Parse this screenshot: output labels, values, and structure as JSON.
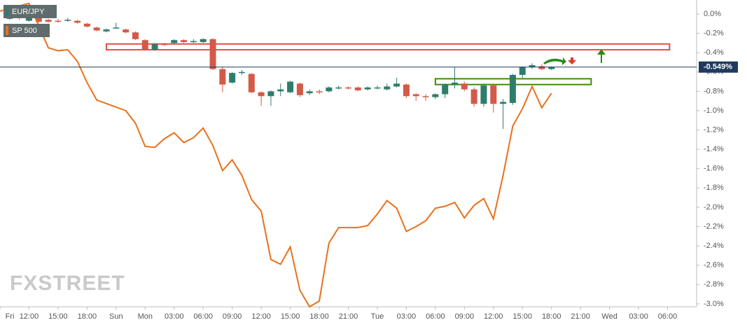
{
  "chart_data": {
    "type": "candlestick",
    "series": [
      {
        "name": "EUR/JPY",
        "type": "candlestick",
        "up_color": "#2e7d6b",
        "down_color": "#d35a48",
        "x": [
          1,
          2,
          3,
          4,
          5,
          6,
          7,
          8,
          9,
          10,
          11,
          12,
          13,
          14,
          15,
          16,
          17,
          18,
          19,
          20,
          21,
          22,
          23,
          24,
          25,
          26,
          27,
          28,
          29,
          30,
          31,
          32,
          33,
          34,
          35,
          36,
          37,
          38,
          39,
          40,
          41,
          42,
          43,
          44,
          45,
          46,
          47,
          48,
          49,
          50,
          51,
          52,
          53,
          54,
          55,
          56,
          57
        ],
        "open": [
          -0.05,
          -0.03,
          -0.07,
          -0.03,
          -0.06,
          -0.07,
          -0.06,
          -0.07,
          -0.1,
          -0.14,
          -0.18,
          -0.14,
          -0.16,
          -0.19,
          -0.27,
          -0.37,
          -0.31,
          -0.3,
          -0.27,
          -0.28,
          -0.29,
          -0.26,
          -0.57,
          -0.71,
          -0.6,
          -0.62,
          -0.81,
          -0.85,
          -0.8,
          -0.81,
          -0.72,
          -0.82,
          -0.8,
          -0.8,
          -0.76,
          -0.76,
          -0.76,
          -0.78,
          -0.76,
          -0.78,
          -0.75,
          -0.73,
          -0.83,
          -0.85,
          -0.86,
          -0.83,
          -0.73,
          -0.72,
          -0.78,
          -0.93,
          -0.74,
          -0.93,
          -0.92,
          -0.63,
          -0.55,
          -0.54,
          -0.57
        ],
        "close": [
          -0.01,
          -0.04,
          -0.03,
          -0.08,
          -0.08,
          -0.08,
          -0.06,
          -0.09,
          -0.13,
          -0.17,
          -0.16,
          -0.14,
          -0.19,
          -0.26,
          -0.37,
          -0.31,
          -0.32,
          -0.27,
          -0.29,
          -0.28,
          -0.26,
          -0.57,
          -0.73,
          -0.61,
          -0.6,
          -0.81,
          -0.85,
          -0.8,
          -0.78,
          -0.7,
          -0.84,
          -0.8,
          -0.81,
          -0.76,
          -0.76,
          -0.77,
          -0.79,
          -0.76,
          -0.76,
          -0.75,
          -0.72,
          -0.85,
          -0.85,
          -0.86,
          -0.83,
          -0.73,
          -0.71,
          -0.78,
          -0.93,
          -0.74,
          -0.93,
          -0.91,
          -0.63,
          -0.55,
          -0.53,
          -0.57,
          -0.55
        ],
        "high": [
          0.0,
          -0.01,
          -0.01,
          -0.02,
          -0.05,
          -0.05,
          -0.04,
          -0.06,
          -0.09,
          -0.13,
          -0.15,
          -0.09,
          -0.15,
          -0.18,
          -0.26,
          -0.3,
          -0.3,
          -0.26,
          -0.26,
          -0.26,
          -0.25,
          -0.25,
          -0.55,
          -0.6,
          -0.58,
          -0.61,
          -0.8,
          -0.79,
          -0.72,
          -0.69,
          -0.71,
          -0.78,
          -0.78,
          -0.75,
          -0.74,
          -0.75,
          -0.75,
          -0.75,
          -0.74,
          -0.72,
          -0.66,
          -0.72,
          -0.82,
          -0.83,
          -0.82,
          -0.72,
          -0.55,
          -0.7,
          -0.76,
          -0.72,
          -0.72,
          -0.88,
          -0.62,
          -0.54,
          -0.51,
          -0.52,
          -0.54
        ],
        "low": [
          -0.06,
          -0.06,
          -0.08,
          -0.09,
          -0.09,
          -0.09,
          -0.08,
          -0.1,
          -0.14,
          -0.18,
          -0.19,
          -0.15,
          -0.2,
          -0.27,
          -0.38,
          -0.38,
          -0.33,
          -0.31,
          -0.3,
          -0.3,
          -0.3,
          -0.58,
          -0.81,
          -0.72,
          -0.63,
          -0.82,
          -0.95,
          -0.95,
          -0.85,
          -0.82,
          -0.86,
          -0.84,
          -0.83,
          -0.81,
          -0.78,
          -0.78,
          -0.8,
          -0.79,
          -0.78,
          -0.79,
          -0.76,
          -0.87,
          -0.9,
          -0.9,
          -0.88,
          -0.87,
          -0.77,
          -0.8,
          -0.96,
          -0.96,
          -1.02,
          -1.19,
          -0.94,
          -0.66,
          -0.57,
          -0.58,
          -0.58
        ]
      },
      {
        "name": "SP 500",
        "type": "line",
        "color": "#e8711c",
        "x": [
          0,
          3,
          5,
          6,
          7,
          8,
          9,
          10,
          13,
          14,
          15,
          16,
          17,
          18,
          19,
          20,
          21,
          22,
          23,
          24,
          25,
          26,
          27,
          28,
          29,
          30,
          31,
          32,
          33,
          34,
          35,
          36,
          37,
          38,
          39,
          40,
          41,
          42,
          43,
          44,
          45,
          46,
          47,
          48,
          49,
          50,
          51,
          52,
          53,
          54,
          55,
          56,
          57
        ],
        "values": [
          0.03,
          0.11,
          -0.35,
          -0.38,
          -0.37,
          -0.49,
          -0.71,
          -0.89,
          -1.0,
          -1.13,
          -1.37,
          -1.38,
          -1.29,
          -1.23,
          -1.33,
          -1.28,
          -1.18,
          -1.36,
          -1.62,
          -1.51,
          -1.67,
          -1.92,
          -2.04,
          -2.54,
          -2.59,
          -2.41,
          -2.86,
          -3.03,
          -2.97,
          -2.37,
          -2.21,
          -2.21,
          -2.21,
          -2.19,
          -2.07,
          -1.93,
          -2.01,
          -2.25,
          -2.2,
          -2.14,
          -2.01,
          -1.99,
          -1.95,
          -2.11,
          -1.98,
          -1.91,
          -2.12,
          -1.67,
          -1.16,
          -0.98,
          -0.75,
          -0.97,
          -0.82
        ]
      }
    ],
    "bands": [
      {
        "x": [
          11.0,
          69.2
        ],
        "y": [
          -0.31,
          -0.37
        ],
        "color": "#e84c4c"
      },
      {
        "x": [
          45.0,
          61.1
        ],
        "y": [
          -0.67,
          -0.73
        ],
        "color": "#3d8a12"
      }
    ],
    "current_price": {
      "value": -0.549,
      "label": "-0.549%"
    },
    "watermark": "FXSTREET",
    "xlim": [
      0,
      72
    ],
    "xticks": [
      {
        "value": 0,
        "label": "Fri"
      },
      {
        "value": 3,
        "label": "12:00"
      },
      {
        "value": 6,
        "label": "15:00"
      },
      {
        "value": 9,
        "label": "18:00"
      },
      {
        "value": 12,
        "label": "Sun"
      },
      {
        "value": 15,
        "label": "Mon"
      },
      {
        "value": 18,
        "label": "03:00"
      },
      {
        "value": 21,
        "label": "06:00"
      },
      {
        "value": 24,
        "label": "09:00"
      },
      {
        "value": 27,
        "label": "12:00"
      },
      {
        "value": 30,
        "label": "15:00"
      },
      {
        "value": 33,
        "label": "18:00"
      },
      {
        "value": 36,
        "label": "21:00"
      },
      {
        "value": 39,
        "label": "Tue"
      },
      {
        "value": 42,
        "label": "03:00"
      },
      {
        "value": 45,
        "label": "06:00"
      },
      {
        "value": 48,
        "label": "09:00"
      },
      {
        "value": 51,
        "label": "12:00"
      },
      {
        "value": 54,
        "label": "15:00"
      },
      {
        "value": 57,
        "label": "18:00"
      },
      {
        "value": 60,
        "label": "21:00"
      },
      {
        "value": 63,
        "label": "Wed"
      },
      {
        "value": 66,
        "label": "03:00"
      },
      {
        "value": 69,
        "label": "06:00"
      }
    ],
    "ylim": [
      -3.03,
      0.145
    ],
    "yticks": [
      {
        "value": 0,
        "label": "0.0%"
      },
      {
        "value": -0.2,
        "label": "-0.2%"
      },
      {
        "value": -0.4,
        "label": "-0.4%"
      },
      {
        "value": -0.6,
        "label": "-0.6%"
      },
      {
        "value": -0.8,
        "label": "-0.8%"
      },
      {
        "value": -1.0,
        "label": "-1.0%"
      },
      {
        "value": -1.2,
        "label": "-1.2%"
      },
      {
        "value": -1.4,
        "label": "-1.4%"
      },
      {
        "value": -1.6,
        "label": "-1.6%"
      },
      {
        "value": -1.8,
        "label": "-1.8%"
      },
      {
        "value": -2.0,
        "label": "-2.0%"
      },
      {
        "value": -2.2,
        "label": "-2.2%"
      },
      {
        "value": -2.4,
        "label": "-2.4%"
      },
      {
        "value": -2.6,
        "label": "-2.6%"
      },
      {
        "value": -2.8,
        "label": "-2.8%"
      },
      {
        "value": -3.0,
        "label": "-3.0%"
      }
    ],
    "grid": false
  }
}
